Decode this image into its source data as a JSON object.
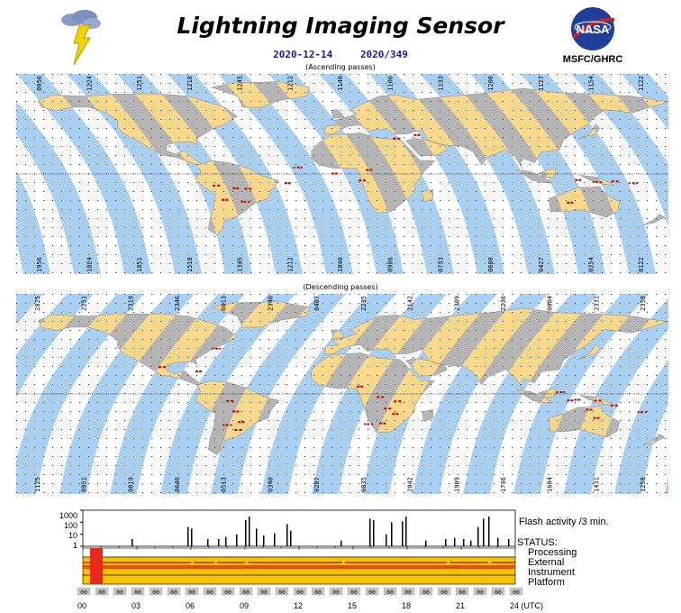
{
  "header": {
    "title": "Lightning Imaging Sensor",
    "date": "2020-12-14",
    "day_of_year": "2020/349",
    "agency_logo_text": "NASA",
    "agency_label": "MSFC/GHRC"
  },
  "ascending": {
    "label": "(Ascending passes)",
    "top_times": [
      "0956",
      "1224",
      "1251",
      "1218",
      "1245",
      "1212",
      "1140",
      "1106",
      "1133",
      "1200",
      "1127",
      "1154",
      "1122"
    ],
    "bottom_times": [
      "1956",
      "1824",
      "1851",
      "1518",
      "1345",
      "1212",
      "1040",
      "0906",
      "0733",
      "0600",
      "0427",
      "0254",
      "0122"
    ]
  },
  "descending": {
    "label": "(Descending passes)",
    "top_times": [
      "2025",
      "2251",
      "2319",
      "2346",
      "0013",
      "2340",
      "0407",
      "2235",
      "2142",
      "2309",
      "2236",
      "0004",
      "2331",
      "2358"
    ],
    "bottom_times": [
      "1125",
      "0951",
      "0819",
      "0646",
      "0513",
      "0340",
      "0207",
      "0035",
      "2042",
      "1909",
      "1736",
      "1604",
      "1431",
      "1258"
    ]
  },
  "status_panel": {
    "flash_label": "Flash activity /3 min.",
    "status_heading": "STATUS:",
    "status_items": [
      "Processing",
      "External",
      "Instrument",
      "Platform"
    ],
    "y_ticks": [
      "1000",
      "100",
      "10",
      "1"
    ],
    "x_ticks": [
      "00",
      "03",
      "06",
      "09",
      "12",
      "15",
      "18",
      "21",
      "24 (UTC)"
    ],
    "hour_boxes": [
      "00",
      "00",
      "00",
      "00",
      "00",
      "00",
      "00",
      "00",
      "00",
      "00",
      "00",
      "00",
      "00",
      "00",
      "00",
      "00",
      "00",
      "00",
      "00",
      "00",
      "00",
      "00",
      "00",
      "00",
      "00"
    ]
  },
  "colors": {
    "ocean_swath": "#a8d0f5",
    "land_swath": "#fcd888",
    "land_gap": "#b4b4b4",
    "lightning": "#cc0000",
    "title_blue": "#1a1aa0"
  },
  "chart_data": {
    "type": "bar",
    "title": "Flash activity /3 min.",
    "x_label": "(UTC)",
    "y_scale": "log",
    "ylim": [
      1,
      1000
    ],
    "series": [
      {
        "name": "Flash activity /3 min.",
        "x_hours": [
          2.7,
          5.8,
          6.0,
          6.9,
          7.5,
          7.9,
          8.5,
          9.0,
          9.2,
          9.6,
          10.0,
          10.6,
          11.3,
          11.5,
          14.3,
          15.9,
          16.1,
          16.8,
          17.1,
          17.7,
          17.9,
          19.0,
          20.1,
          20.6,
          21.1,
          21.5,
          21.9,
          22.2,
          22.5,
          23.0,
          23.6
        ],
        "flashes": [
          4,
          40,
          30,
          4,
          4,
          6,
          10,
          150,
          300,
          30,
          8,
          12,
          70,
          20,
          3,
          200,
          150,
          10,
          100,
          120,
          300,
          3,
          4,
          5,
          4,
          3,
          40,
          200,
          300,
          5,
          4
        ]
      }
    ]
  }
}
